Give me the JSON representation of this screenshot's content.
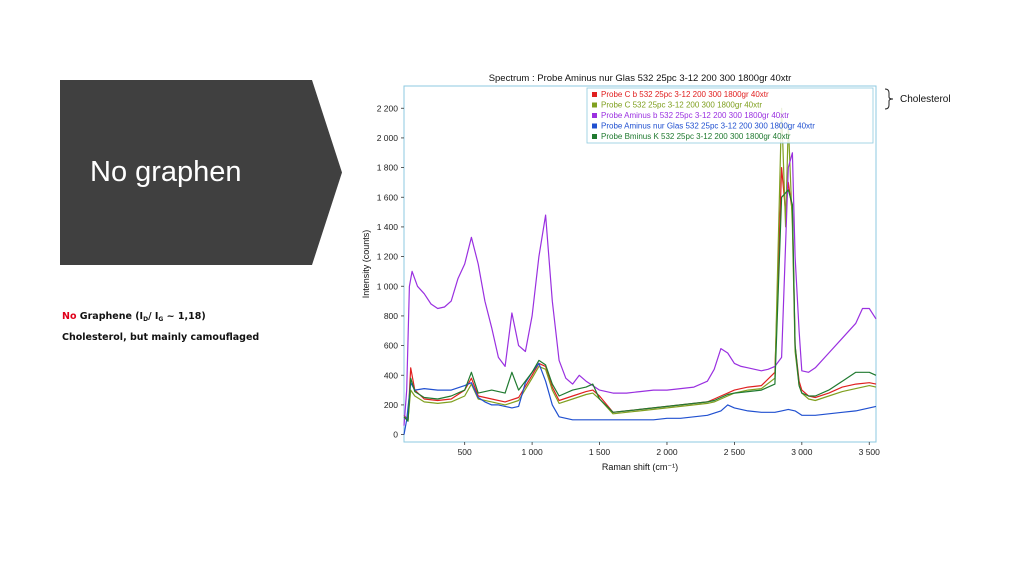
{
  "slide": {
    "title": "No graphen",
    "note_no": "No",
    "note_graphene": "Graphene (I",
    "note_sub_d": "D",
    "note_slash": "/ I",
    "note_sub_g": "G",
    "note_ratio": " ~ 1,18)",
    "note_line2": "Cholesterol, but mainly camouflaged",
    "brace_label": "Cholesterol",
    "colors": {
      "arrow": "#404040",
      "accent": "#e0001a"
    }
  },
  "chart_data": {
    "type": "line",
    "title": "Spectrum : Probe Aminus nur Glas 532 25pc  3-12 200 300 1800gr 40xtr",
    "xlabel": "Raman shift (cm⁻¹)",
    "ylabel": "Intensity (counts)",
    "xlim": [
      50,
      3550
    ],
    "ylim": [
      -50,
      2350
    ],
    "xticks": [
      500,
      1000,
      1500,
      2000,
      2500,
      3000,
      3500
    ],
    "xtick_labels": [
      "500",
      "1 000",
      "1 500",
      "2 000",
      "2 500",
      "3 000",
      "3 500"
    ],
    "yticks": [
      0,
      200,
      400,
      600,
      800,
      1000,
      1200,
      1400,
      1600,
      1800,
      2000,
      2200
    ],
    "ytick_labels": [
      "0",
      "200",
      "400",
      "600",
      "800",
      "1 000",
      "1 200",
      "1 400",
      "1 600",
      "1 800",
      "2 000",
      "2 200"
    ],
    "legend_position": "top-right",
    "series": [
      {
        "name": "Probe C b 532 25pc  3-12 200 300 1800gr 40xtr",
        "color": "#e02020",
        "x": [
          50,
          80,
          100,
          130,
          200,
          300,
          400,
          500,
          550,
          600,
          700,
          800,
          900,
          1000,
          1050,
          1100,
          1150,
          1200,
          1300,
          1400,
          1450,
          1500,
          1600,
          1700,
          1800,
          1900,
          2000,
          2100,
          2200,
          2300,
          2350,
          2400,
          2450,
          2500,
          2600,
          2700,
          2800,
          2850,
          2880,
          2900,
          2930,
          2950,
          2980,
          3000,
          3050,
          3100,
          3200,
          3300,
          3400,
          3500,
          3550
        ],
        "y": [
          130,
          100,
          450,
          300,
          240,
          230,
          240,
          300,
          380,
          260,
          240,
          220,
          250,
          400,
          480,
          460,
          320,
          230,
          260,
          290,
          300,
          260,
          150,
          160,
          170,
          180,
          190,
          200,
          210,
          220,
          240,
          260,
          280,
          300,
          320,
          330,
          420,
          1800,
          1500,
          1700,
          1500,
          600,
          360,
          300,
          260,
          250,
          280,
          320,
          340,
          350,
          340
        ]
      },
      {
        "name": "Probe C 532 25pc  3-12 200 300 1800gr 40xtr",
        "color": "#80a020",
        "x": [
          50,
          80,
          100,
          130,
          200,
          300,
          400,
          500,
          550,
          600,
          700,
          800,
          900,
          1000,
          1050,
          1100,
          1150,
          1200,
          1300,
          1400,
          1450,
          1500,
          1600,
          1700,
          1800,
          1900,
          2000,
          2100,
          2200,
          2300,
          2350,
          2400,
          2450,
          2500,
          2600,
          2700,
          2800,
          2850,
          2880,
          2900,
          2930,
          2950,
          2980,
          3000,
          3050,
          3100,
          3200,
          3300,
          3400,
          3500,
          3550
        ],
        "y": [
          120,
          100,
          300,
          260,
          220,
          210,
          220,
          260,
          340,
          240,
          220,
          200,
          230,
          380,
          460,
          440,
          300,
          210,
          240,
          270,
          280,
          240,
          140,
          150,
          160,
          170,
          180,
          190,
          200,
          210,
          220,
          240,
          260,
          280,
          300,
          310,
          380,
          2200,
          1400,
          2100,
          1400,
          560,
          330,
          280,
          240,
          230,
          260,
          290,
          310,
          330,
          320
        ]
      },
      {
        "name": "Probe Aminus b 532 25pc  3-12 200 300 1800gr 40xtr",
        "color": "#9a30e0",
        "x": [
          50,
          70,
          90,
          110,
          150,
          200,
          250,
          300,
          350,
          400,
          450,
          500,
          550,
          600,
          650,
          700,
          750,
          800,
          850,
          900,
          950,
          1000,
          1050,
          1100,
          1150,
          1200,
          1250,
          1300,
          1350,
          1400,
          1450,
          1500,
          1600,
          1700,
          1800,
          1900,
          2000,
          2100,
          2200,
          2300,
          2350,
          2400,
          2450,
          2500,
          2550,
          2600,
          2650,
          2700,
          2750,
          2800,
          2850,
          2900,
          2930,
          2950,
          2980,
          3000,
          3050,
          3100,
          3200,
          3300,
          3400,
          3450,
          3500,
          3550
        ],
        "y": [
          60,
          300,
          1000,
          1100,
          1000,
          950,
          880,
          850,
          860,
          900,
          1050,
          1150,
          1330,
          1150,
          900,
          720,
          520,
          460,
          820,
          600,
          560,
          800,
          1200,
          1480,
          900,
          500,
          380,
          340,
          400,
          360,
          330,
          300,
          280,
          280,
          290,
          300,
          300,
          310,
          320,
          360,
          440,
          580,
          550,
          480,
          460,
          450,
          440,
          430,
          440,
          460,
          520,
          1800,
          1900,
          1200,
          700,
          430,
          420,
          450,
          550,
          650,
          750,
          850,
          850,
          780
        ]
      },
      {
        "name": "Probe Aminus nur Glas 532 25pc  3-12 200 300 1800gr 40xtr",
        "color": "#2050d0",
        "x": [
          50,
          70,
          100,
          130,
          200,
          300,
          400,
          500,
          550,
          600,
          650,
          700,
          750,
          800,
          850,
          900,
          950,
          1000,
          1050,
          1100,
          1150,
          1200,
          1300,
          1400,
          1500,
          1600,
          1700,
          1800,
          1900,
          2000,
          2100,
          2200,
          2300,
          2400,
          2450,
          2500,
          2600,
          2700,
          2800,
          2850,
          2900,
          2950,
          3000,
          3100,
          3200,
          3300,
          3400,
          3500,
          3550
        ],
        "y": [
          0,
          100,
          350,
          300,
          310,
          300,
          300,
          330,
          350,
          250,
          220,
          200,
          200,
          190,
          180,
          190,
          350,
          420,
          480,
          360,
          200,
          120,
          100,
          100,
          100,
          100,
          100,
          100,
          100,
          110,
          110,
          120,
          130,
          160,
          200,
          180,
          160,
          150,
          150,
          160,
          170,
          160,
          130,
          130,
          140,
          150,
          160,
          180,
          190
        ]
      },
      {
        "name": "Probe Bminus K 532 25pc  3-12 200 300 1800gr 40xtr",
        "color": "#207a30",
        "x": [
          50,
          80,
          100,
          130,
          200,
          300,
          400,
          500,
          550,
          600,
          700,
          800,
          850,
          900,
          1000,
          1050,
          1100,
          1150,
          1200,
          1300,
          1400,
          1450,
          1500,
          1600,
          1700,
          1800,
          1900,
          2000,
          2100,
          2200,
          2300,
          2350,
          2400,
          2450,
          2500,
          2600,
          2700,
          2800,
          2850,
          2900,
          2930,
          2950,
          2980,
          3000,
          3050,
          3100,
          3200,
          3300,
          3400,
          3500,
          3550
        ],
        "y": [
          120,
          90,
          380,
          290,
          250,
          240,
          260,
          300,
          420,
          280,
          300,
          280,
          420,
          300,
          420,
          500,
          470,
          340,
          260,
          300,
          320,
          340,
          240,
          150,
          160,
          170,
          180,
          190,
          200,
          210,
          220,
          230,
          250,
          270,
          280,
          290,
          300,
          340,
          1600,
          1650,
          1550,
          600,
          330,
          280,
          260,
          260,
          300,
          360,
          420,
          420,
          400
        ]
      }
    ]
  }
}
